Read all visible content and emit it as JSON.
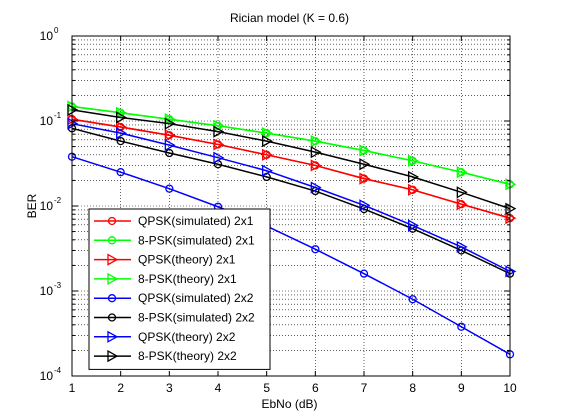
{
  "chart_data": {
    "type": "line",
    "title": "Rician model (K = 0.6)",
    "xlabel": "EbNo (dB)",
    "ylabel": "BER",
    "xlim": [
      1,
      10
    ],
    "ylim": [
      0.0001,
      1
    ],
    "yscale": "log",
    "grid": "major-and-minor dotted",
    "legend_position": "lower-left",
    "x": [
      1,
      2,
      3,
      4,
      5,
      6,
      7,
      8,
      9,
      10
    ],
    "x_ticks": [
      "1",
      "2",
      "3",
      "4",
      "5",
      "6",
      "7",
      "8",
      "9",
      "10"
    ],
    "y_ticks": [
      {
        "value": 1,
        "base": "10",
        "exp": "0"
      },
      {
        "value": 0.1,
        "base": "10",
        "exp": "-1"
      },
      {
        "value": 0.01,
        "base": "10",
        "exp": "-2"
      },
      {
        "value": 0.001,
        "base": "10",
        "exp": "-3"
      },
      {
        "value": 0.0001,
        "base": "10",
        "exp": "-4"
      }
    ],
    "series": [
      {
        "name": "QPSK(simulated) 2x1",
        "color": "#ff0000",
        "marker": "circle",
        "values": [
          0.105,
          0.085,
          0.068,
          0.053,
          0.04,
          0.03,
          0.021,
          0.0155,
          0.0105,
          0.0072
        ]
      },
      {
        "name": "8-PSK(simulated) 2x1",
        "color": "#00ff00",
        "marker": "circle",
        "values": [
          0.148,
          0.125,
          0.105,
          0.088,
          0.072,
          0.058,
          0.045,
          0.034,
          0.025,
          0.018
        ]
      },
      {
        "name": "QPSK(theory) 2x1",
        "color": "#ff0000",
        "marker": "triangle-right",
        "values": [
          0.105,
          0.085,
          0.068,
          0.053,
          0.04,
          0.03,
          0.021,
          0.0155,
          0.0105,
          0.0072
        ]
      },
      {
        "name": "8-PSK(theory) 2x1",
        "color": "#00ff00",
        "marker": "triangle-right",
        "values": [
          0.148,
          0.125,
          0.105,
          0.088,
          0.072,
          0.058,
          0.045,
          0.034,
          0.025,
          0.018
        ]
      },
      {
        "name": "QPSK(simulated) 2x2",
        "color": "#0000ff",
        "marker": "circle",
        "values": [
          0.038,
          0.025,
          0.016,
          0.0098,
          0.0058,
          0.0031,
          0.0016,
          0.0008,
          0.00038,
          0.00018
        ]
      },
      {
        "name": "8-PSK(simulated) 2x2",
        "color": "#000000",
        "marker": "circle",
        "values": [
          0.082,
          0.058,
          0.042,
          0.031,
          0.022,
          0.015,
          0.0092,
          0.0054,
          0.003,
          0.0016
        ]
      },
      {
        "name": "QPSK(theory) 2x2",
        "color": "#0000ff",
        "marker": "triangle-right",
        "values": [
          0.093,
          0.072,
          0.052,
          0.037,
          0.026,
          0.0165,
          0.0102,
          0.0059,
          0.0033,
          0.0017
        ]
      },
      {
        "name": "8-PSK(theory) 2x2",
        "color": "#000000",
        "marker": "triangle-right",
        "values": [
          0.135,
          0.11,
          0.093,
          0.075,
          0.058,
          0.043,
          0.031,
          0.022,
          0.0145,
          0.0093
        ]
      }
    ]
  }
}
